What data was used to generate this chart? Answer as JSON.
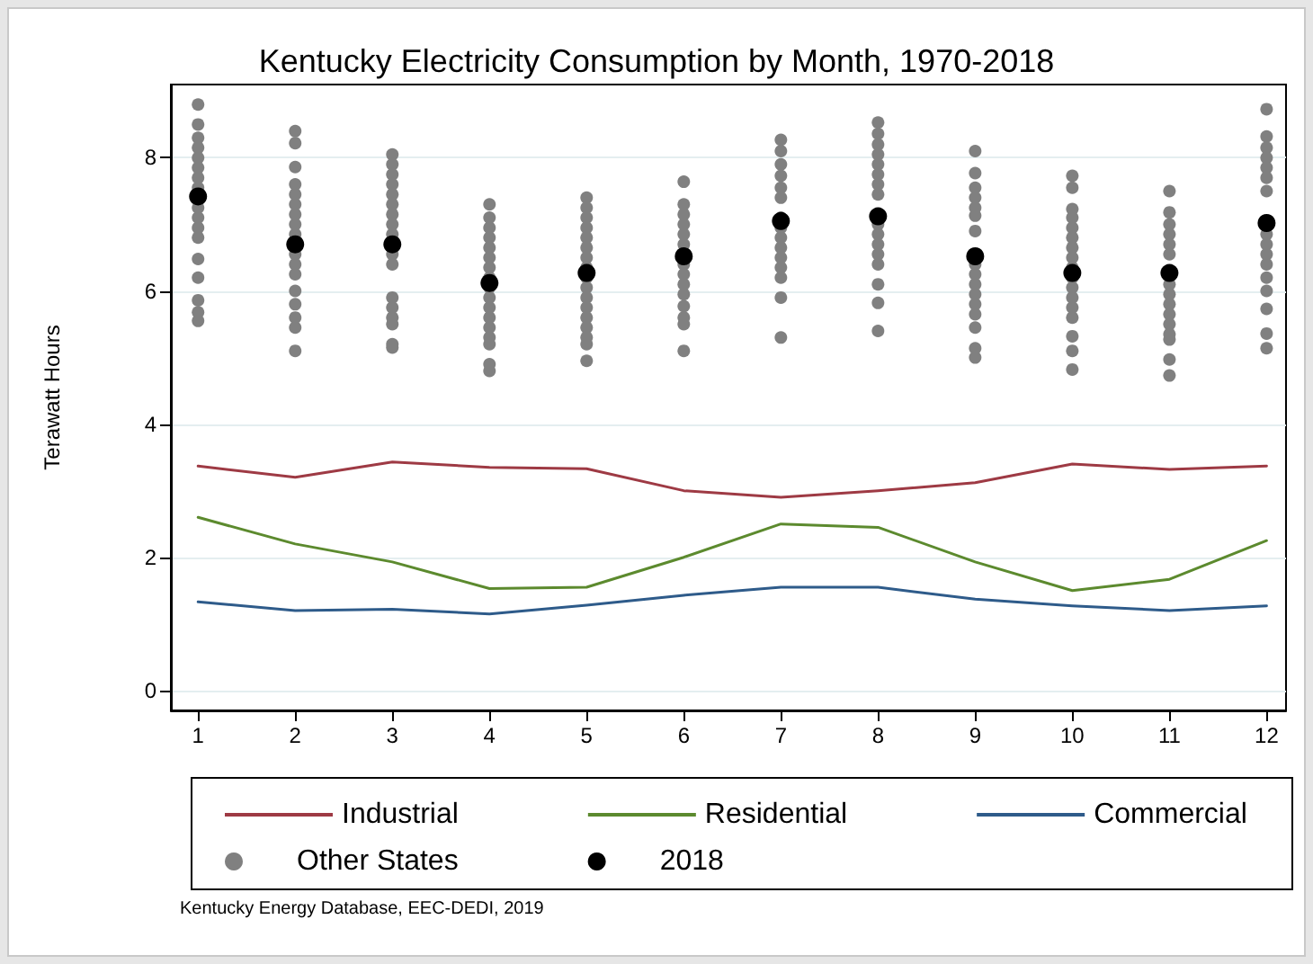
{
  "chart_data": {
    "type": "line",
    "title": "Kentucky Electricity Consumption by Month, 1970-2018",
    "ylabel": "Terawatt Hours",
    "xlim": [
      0.72,
      12.2
    ],
    "xticks": [
      1,
      2,
      3,
      4,
      5,
      6,
      7,
      8,
      9,
      10,
      11,
      12
    ],
    "ylim": [
      -0.3,
      9.1
    ],
    "yticks": [
      0,
      2,
      4,
      6,
      8
    ],
    "grid": "y",
    "legend": "bottom",
    "line_style": "solid",
    "annotations": [
      "Kentucky Energy Database, EEC-DEDI, 2019"
    ],
    "series": [
      {
        "name": "Industrial",
        "color": "#9e3a44",
        "x": [
          1,
          2,
          3,
          4,
          5,
          6,
          7,
          8,
          9,
          10,
          11,
          12
        ],
        "values": [
          3.37,
          3.2,
          3.43,
          3.35,
          3.33,
          3.0,
          2.9,
          3.0,
          3.12,
          3.4,
          3.32,
          3.37
        ]
      },
      {
        "name": "Residential",
        "color": "#5c8a2e",
        "x": [
          1,
          2,
          3,
          4,
          5,
          6,
          7,
          8,
          9,
          10,
          11,
          12
        ],
        "values": [
          2.6,
          2.2,
          1.93,
          1.53,
          1.55,
          2.0,
          2.5,
          2.45,
          1.93,
          1.5,
          1.67,
          2.25
        ]
      },
      {
        "name": "Commercial",
        "color": "#2e5b8a",
        "x": [
          1,
          2,
          3,
          4,
          5,
          6,
          7,
          8,
          9,
          10,
          11,
          12
        ],
        "values": [
          1.33,
          1.2,
          1.22,
          1.15,
          1.28,
          1.43,
          1.55,
          1.55,
          1.37,
          1.27,
          1.2,
          1.27
        ]
      },
      {
        "name": "Other States",
        "type": "scatter",
        "marker": "circle",
        "color": "#808080",
        "x": [
          1,
          1,
          1,
          1,
          1,
          1,
          1,
          1,
          1,
          1,
          1,
          1,
          1,
          1,
          1,
          1,
          1,
          2,
          2,
          2,
          2,
          2,
          2,
          2,
          2,
          2,
          2,
          2,
          2,
          2,
          2,
          2,
          2,
          2,
          3,
          3,
          3,
          3,
          3,
          3,
          3,
          3,
          3,
          3,
          3,
          3,
          3,
          3,
          3,
          3,
          3,
          4,
          4,
          4,
          4,
          4,
          4,
          4,
          4,
          4,
          4,
          4,
          4,
          4,
          4,
          4,
          4,
          4,
          5,
          5,
          5,
          5,
          5,
          5,
          5,
          5,
          5,
          5,
          5,
          5,
          5,
          5,
          5,
          5,
          5,
          6,
          6,
          6,
          6,
          6,
          6,
          6,
          6,
          6,
          6,
          6,
          6,
          6,
          6,
          7,
          7,
          7,
          7,
          7,
          7,
          7,
          7,
          7,
          7,
          7,
          7,
          7,
          7,
          7,
          8,
          8,
          8,
          8,
          8,
          8,
          8,
          8,
          8,
          8,
          8,
          8,
          8,
          8,
          8,
          8,
          9,
          9,
          9,
          9,
          9,
          9,
          9,
          9,
          9,
          9,
          9,
          9,
          9,
          9,
          9,
          9,
          10,
          10,
          10,
          10,
          10,
          10,
          10,
          10,
          10,
          10,
          10,
          10,
          10,
          10,
          10,
          10,
          10,
          11,
          11,
          11,
          11,
          11,
          11,
          11,
          11,
          11,
          11,
          11,
          11,
          11,
          11,
          11,
          12,
          12,
          12,
          12,
          12,
          12,
          12,
          12,
          12,
          12,
          12,
          12,
          12,
          12,
          12,
          12
        ],
        "values": [
          8.8,
          8.5,
          8.3,
          8.15,
          8.0,
          7.85,
          7.7,
          7.55,
          7.25,
          7.1,
          6.95,
          6.8,
          6.48,
          6.2,
          5.86,
          5.68,
          5.55,
          8.4,
          8.22,
          7.86,
          7.6,
          7.45,
          7.3,
          7.15,
          7.0,
          6.85,
          6.55,
          6.4,
          6.25,
          6.0,
          5.8,
          5.6,
          5.45,
          5.1,
          8.05,
          7.9,
          7.75,
          7.6,
          7.45,
          7.3,
          7.15,
          7.0,
          6.85,
          6.55,
          6.4,
          5.9,
          5.75,
          5.6,
          5.5,
          5.2,
          5.15,
          7.3,
          7.1,
          6.95,
          6.8,
          6.65,
          6.5,
          6.35,
          6.2,
          6.05,
          5.9,
          5.75,
          5.6,
          5.45,
          5.3,
          5.2,
          4.9,
          4.8,
          7.4,
          7.25,
          7.1,
          6.95,
          6.8,
          6.65,
          6.5,
          6.35,
          6.2,
          6.05,
          5.9,
          5.75,
          5.6,
          5.45,
          5.3,
          5.2,
          4.95,
          7.64,
          7.3,
          7.15,
          7.0,
          6.85,
          6.7,
          6.4,
          6.25,
          6.1,
          5.95,
          5.77,
          5.6,
          5.5,
          5.1,
          8.27,
          8.1,
          7.9,
          7.73,
          7.55,
          7.4,
          7.1,
          6.95,
          6.8,
          6.65,
          6.5,
          6.35,
          6.2,
          5.9,
          5.3,
          8.53,
          8.36,
          8.2,
          8.05,
          7.9,
          7.75,
          7.6,
          7.45,
          7.0,
          6.85,
          6.7,
          6.55,
          6.4,
          6.1,
          5.82,
          5.4,
          8.1,
          7.77,
          7.55,
          7.4,
          7.25,
          7.13,
          6.9,
          6.4,
          6.25,
          6.1,
          5.95,
          5.8,
          5.65,
          5.45,
          5.14,
          5.0,
          7.73,
          7.55,
          7.23,
          7.1,
          6.95,
          6.8,
          6.65,
          6.5,
          6.35,
          6.2,
          6.05,
          5.9,
          5.75,
          5.6,
          5.32,
          5.1,
          4.82,
          7.5,
          7.18,
          7.0,
          6.85,
          6.7,
          6.55,
          6.1,
          5.95,
          5.8,
          5.65,
          5.5,
          5.35,
          5.27,
          4.97,
          4.73,
          8.73,
          8.32,
          8.15,
          8.0,
          7.85,
          7.7,
          7.5,
          6.85,
          6.7,
          6.55,
          6.4,
          6.2,
          6.0,
          5.73,
          5.36,
          5.14
        ]
      },
      {
        "name": "2018",
        "type": "scatter",
        "marker": "circle",
        "color": "#000000",
        "x": [
          1,
          2,
          3,
          4,
          5,
          6,
          7,
          8,
          9,
          10,
          11,
          12
        ],
        "values": [
          7.42,
          6.7,
          6.7,
          6.12,
          6.27,
          6.52,
          7.05,
          7.12,
          6.52,
          6.27,
          6.27,
          7.02
        ]
      }
    ]
  }
}
